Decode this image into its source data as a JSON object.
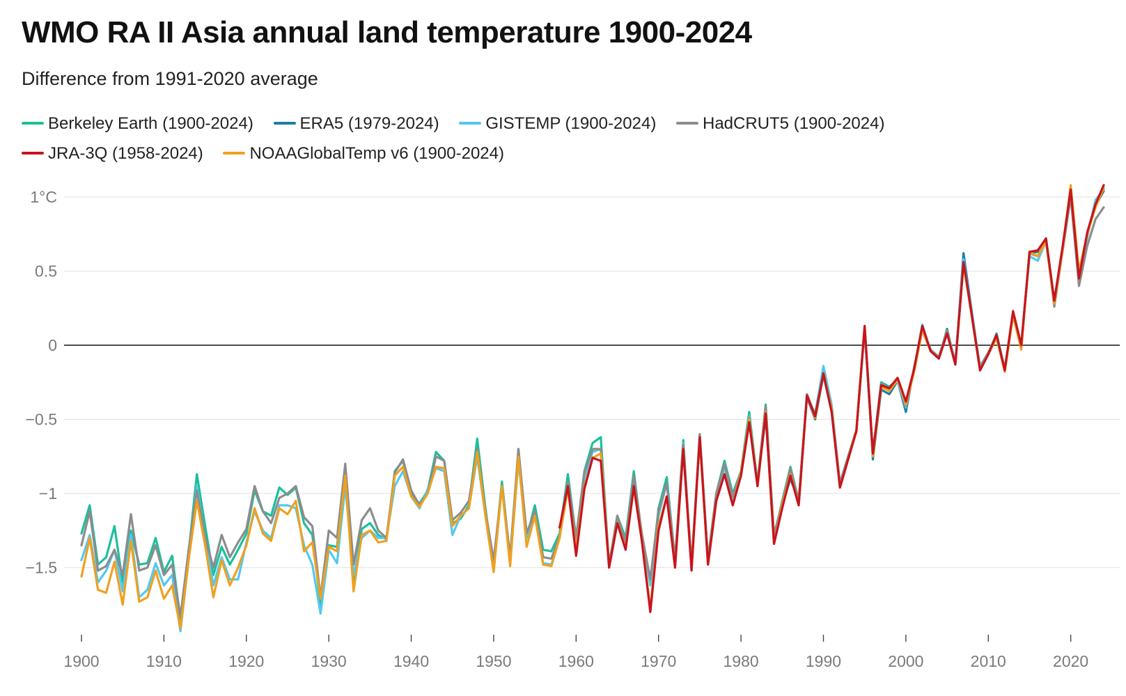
{
  "title": "WMO RA II Asia annual land temperature 1900-2024",
  "subtitle": "Difference from 1991-2020 average",
  "chart_data": {
    "type": "line",
    "title": "WMO RA II Asia annual land temperature 1900-2024",
    "subtitle": "Difference from 1991-2020 average",
    "xlabel": "",
    "ylabel": "",
    "xlim": [
      1900,
      2024
    ],
    "ylim": [
      -2.0,
      1.1
    ],
    "x_ticks": [
      1900,
      1910,
      1920,
      1930,
      1940,
      1950,
      1960,
      1970,
      1980,
      1990,
      2000,
      2010,
      2020
    ],
    "x_tick_labels": [
      "1900",
      "1910",
      "1920",
      "1930",
      "1940",
      "1950",
      "1960",
      "1970",
      "1980",
      "1990",
      "2000",
      "2010",
      "2020"
    ],
    "y_ticks": [
      1,
      0.5,
      0,
      -0.5,
      -1,
      -1.5
    ],
    "y_tick_labels": [
      "1°C",
      "0.5",
      "0",
      "−0.5",
      "−1",
      "−1.5"
    ],
    "zero_line": true,
    "grid": true,
    "legend_position": "top-left",
    "series": [
      {
        "name": "Berkeley Earth (1900-2024)",
        "color": "#1cbf9c",
        "start": 1900,
        "values": [
          -1.27,
          -1.08,
          -1.48,
          -1.43,
          -1.22,
          -1.6,
          -1.25,
          -1.48,
          -1.47,
          -1.3,
          -1.53,
          -1.42,
          -1.85,
          -1.4,
          -0.87,
          -1.22,
          -1.55,
          -1.36,
          -1.48,
          -1.38,
          -1.27,
          -0.98,
          -1.12,
          -1.15,
          -0.96,
          -1.01,
          -0.96,
          -1.2,
          -1.28,
          -1.75,
          -1.35,
          -1.36,
          -0.82,
          -1.58,
          -1.24,
          -1.2,
          -1.28,
          -1.31,
          -0.85,
          -0.78,
          -1.0,
          -1.07,
          -0.98,
          -0.72,
          -0.78,
          -1.2,
          -1.17,
          -1.08,
          -0.63,
          -1.1,
          -1.5,
          -0.92,
          -1.44,
          -0.7,
          -1.3,
          -1.08,
          -1.38,
          -1.39,
          -1.27,
          -0.87,
          -1.3,
          -0.85,
          -0.66,
          -0.62,
          -1.49,
          -1.15,
          -1.3,
          -0.85,
          -1.3,
          -1.6,
          -1.1,
          -0.89,
          -1.45,
          -0.64,
          -1.5,
          -0.6,
          -1.44,
          -1.0,
          -0.78,
          -1.0,
          -0.85,
          -0.45,
          -0.93,
          -0.4,
          -1.3,
          -1.05,
          -0.82,
          -1.05,
          -0.33,
          -0.48,
          -0.18,
          -0.41,
          -0.93,
          -0.75,
          -0.58,
          0.12,
          -0.73,
          -0.25,
          -0.28,
          -0.23,
          -0.4,
          -0.17,
          0.12,
          -0.03,
          -0.08,
          0.1,
          -0.12,
          0.56,
          0.2,
          -0.16,
          -0.06,
          0.08,
          -0.16,
          0.22,
          0.0,
          0.63,
          0.63,
          0.72,
          0.3,
          0.65,
          1.04,
          0.48,
          0.75,
          0.96,
          1.06
        ]
      },
      {
        "name": "ERA5 (1979-2024)",
        "color": "#1a7fa3",
        "start": 1979,
        "values": [
          -1.02,
          -0.88,
          -0.52,
          -0.93,
          -0.48,
          -1.31,
          -1.08,
          -0.9,
          -1.05,
          -0.35,
          -0.5,
          -0.2,
          -0.45,
          -0.95,
          -0.75,
          -0.58,
          0.11,
          -0.77,
          -0.3,
          -0.33,
          -0.24,
          -0.45,
          -0.15,
          0.1,
          -0.03,
          -0.09,
          0.11,
          -0.13,
          0.62,
          0.22,
          -0.15,
          -0.05,
          0.05,
          -0.17,
          0.2,
          0.0,
          0.62,
          0.63,
          0.72,
          0.28,
          0.65,
          1.04,
          0.45,
          0.75,
          0.94,
          1.04
        ]
      },
      {
        "name": "GISTEMP (1900-2024)",
        "color": "#52c9ef",
        "start": 1900,
        "values": [
          -1.45,
          -1.28,
          -1.6,
          -1.52,
          -1.38,
          -1.66,
          -1.28,
          -1.7,
          -1.65,
          -1.47,
          -1.62,
          -1.55,
          -1.93,
          -1.45,
          -0.95,
          -1.3,
          -1.62,
          -1.43,
          -1.58,
          -1.58,
          -1.33,
          -1.12,
          -1.25,
          -1.3,
          -1.08,
          -1.08,
          -1.1,
          -1.35,
          -1.48,
          -1.81,
          -1.38,
          -1.47,
          -0.95,
          -1.55,
          -1.3,
          -1.25,
          -1.3,
          -1.3,
          -0.95,
          -0.85,
          -1.02,
          -1.1,
          -0.97,
          -0.83,
          -0.85,
          -1.28,
          -1.15,
          -1.1,
          -0.75,
          -1.15,
          -1.52,
          -0.95,
          -1.47,
          -0.78,
          -1.3,
          -1.15,
          -1.47,
          -1.48,
          -1.3,
          -0.95,
          -1.32,
          -0.9,
          -0.72,
          -0.7,
          -1.49,
          -1.2,
          -1.35,
          -0.9,
          -1.3,
          -1.62,
          -1.15,
          -0.93,
          -1.47,
          -0.66,
          -1.5,
          -0.62,
          -1.46,
          -1.02,
          -0.82,
          -1.06,
          -0.88,
          -0.48,
          -0.95,
          -0.43,
          -1.32,
          -1.08,
          -0.85,
          -1.08,
          -0.35,
          -0.46,
          -0.14,
          -0.4,
          -0.94,
          -0.76,
          -0.58,
          0.1,
          -0.74,
          -0.27,
          -0.3,
          -0.24,
          -0.42,
          -0.16,
          0.14,
          -0.04,
          -0.08,
          0.1,
          -0.11,
          0.58,
          0.2,
          -0.14,
          -0.05,
          0.07,
          -0.16,
          0.2,
          0.0,
          0.6,
          0.57,
          0.7,
          0.27,
          0.65,
          1.02,
          0.47,
          0.73,
          0.98,
          1.05
        ]
      },
      {
        "name": "HadCRUT5 (1900-2024)",
        "color": "#8c8c8c",
        "start": 1900,
        "values": [
          -1.35,
          -1.12,
          -1.52,
          -1.49,
          -1.38,
          -1.55,
          -1.14,
          -1.52,
          -1.5,
          -1.35,
          -1.55,
          -1.48,
          -1.83,
          -1.38,
          -0.98,
          -1.3,
          -1.5,
          -1.28,
          -1.43,
          -1.33,
          -1.24,
          -0.95,
          -1.12,
          -1.2,
          -1.03,
          -1.0,
          -0.95,
          -1.16,
          -1.22,
          -1.7,
          -1.25,
          -1.3,
          -0.8,
          -1.48,
          -1.18,
          -1.1,
          -1.25,
          -1.3,
          -0.86,
          -0.77,
          -0.98,
          -1.08,
          -1.0,
          -0.75,
          -0.78,
          -1.18,
          -1.13,
          -1.05,
          -0.7,
          -1.12,
          -1.45,
          -0.95,
          -1.43,
          -0.7,
          -1.27,
          -1.12,
          -1.43,
          -1.44,
          -1.29,
          -0.92,
          -1.3,
          -0.86,
          -0.7,
          -0.7,
          -1.48,
          -1.15,
          -1.33,
          -0.88,
          -1.28,
          -1.58,
          -1.12,
          -0.93,
          -1.45,
          -0.67,
          -1.48,
          -0.6,
          -1.45,
          -1.0,
          -0.8,
          -1.02,
          -0.86,
          -0.49,
          -0.93,
          -0.41,
          -1.28,
          -1.06,
          -0.83,
          -1.05,
          -0.33,
          -0.47,
          -0.19,
          -0.43,
          -0.93,
          -0.75,
          -0.57,
          0.12,
          -0.73,
          -0.26,
          -0.29,
          -0.22,
          -0.41,
          -0.17,
          0.1,
          -0.03,
          -0.08,
          0.1,
          -0.13,
          0.55,
          0.2,
          -0.15,
          -0.05,
          0.06,
          -0.16,
          0.21,
          -0.02,
          0.62,
          0.6,
          0.72,
          0.26,
          0.63,
          1.0,
          0.4,
          0.67,
          0.85,
          0.93
        ]
      },
      {
        "name": "NOAAGlobalTemp v6 (1900-2024)",
        "color": "#f0a020",
        "start": 1900,
        "values": [
          -1.56,
          -1.3,
          -1.65,
          -1.67,
          -1.46,
          -1.75,
          -1.32,
          -1.73,
          -1.7,
          -1.52,
          -1.71,
          -1.62,
          -1.91,
          -1.45,
          -1.05,
          -1.35,
          -1.7,
          -1.45,
          -1.62,
          -1.5,
          -1.35,
          -1.1,
          -1.27,
          -1.32,
          -1.1,
          -1.14,
          -1.05,
          -1.39,
          -1.33,
          -1.71,
          -1.36,
          -1.39,
          -0.88,
          -1.66,
          -1.28,
          -1.25,
          -1.33,
          -1.32,
          -0.88,
          -0.82,
          -1.02,
          -1.09,
          -1.0,
          -0.82,
          -0.83,
          -1.22,
          -1.15,
          -1.1,
          -0.72,
          -1.15,
          -1.53,
          -0.95,
          -1.49,
          -0.75,
          -1.36,
          -1.15,
          -1.48,
          -1.49,
          -1.3,
          -0.97,
          -1.38,
          -0.96,
          -0.76,
          -0.73,
          -1.5,
          -1.2,
          -1.37,
          -0.96,
          -1.32,
          -1.78,
          -1.22,
          -1.02,
          -1.5,
          -0.7,
          -1.51,
          -0.63,
          -1.48,
          -1.05,
          -0.87,
          -1.08,
          -0.86,
          -0.5,
          -0.95,
          -0.45,
          -1.34,
          -1.08,
          -0.87,
          -1.08,
          -0.34,
          -0.49,
          -0.19,
          -0.43,
          -0.96,
          -0.77,
          -0.57,
          0.13,
          -0.75,
          -0.28,
          -0.31,
          -0.23,
          -0.4,
          -0.18,
          0.1,
          -0.04,
          -0.09,
          0.08,
          -0.13,
          0.55,
          0.19,
          -0.17,
          -0.06,
          0.05,
          -0.18,
          0.2,
          -0.03,
          0.63,
          0.6,
          0.7,
          0.28,
          0.64,
          1.08,
          0.5,
          0.75,
          0.93,
          1.06
        ]
      },
      {
        "name": "JRA-3Q (1958-2024)",
        "color": "#c8141e",
        "start": 1958,
        "values": [
          -1.23,
          -0.95,
          -1.42,
          -0.97,
          -0.76,
          -0.78,
          -1.5,
          -1.2,
          -1.38,
          -0.95,
          -1.33,
          -1.8,
          -1.25,
          -1.02,
          -1.5,
          -0.7,
          -1.52,
          -0.62,
          -1.48,
          -1.05,
          -0.87,
          -1.08,
          -0.88,
          -0.52,
          -0.95,
          -0.46,
          -1.34,
          -1.1,
          -0.88,
          -1.08,
          -0.34,
          -0.48,
          -0.19,
          -0.45,
          -0.96,
          -0.77,
          -0.58,
          0.13,
          -0.73,
          -0.27,
          -0.29,
          -0.22,
          -0.38,
          -0.16,
          0.13,
          -0.04,
          -0.09,
          0.08,
          -0.13,
          0.56,
          0.2,
          -0.17,
          -0.06,
          0.07,
          -0.17,
          0.23,
          0.0,
          0.63,
          0.64,
          0.72,
          0.3,
          0.66,
          1.05,
          0.45,
          0.76,
          0.95,
          1.08
        ]
      }
    ]
  },
  "legend": [
    {
      "label": "Berkeley Earth (1900-2024)",
      "color": "#1cbf9c"
    },
    {
      "label": "ERA5 (1979-2024)",
      "color": "#1a7fa3"
    },
    {
      "label": "GISTEMP (1900-2024)",
      "color": "#52c9ef"
    },
    {
      "label": "HadCRUT5 (1900-2024)",
      "color": "#8c8c8c"
    },
    {
      "label": "JRA-3Q (1958-2024)",
      "color": "#c8141e"
    },
    {
      "label": "NOAAGlobalTemp v6 (1900-2024)",
      "color": "#f0a020"
    }
  ]
}
